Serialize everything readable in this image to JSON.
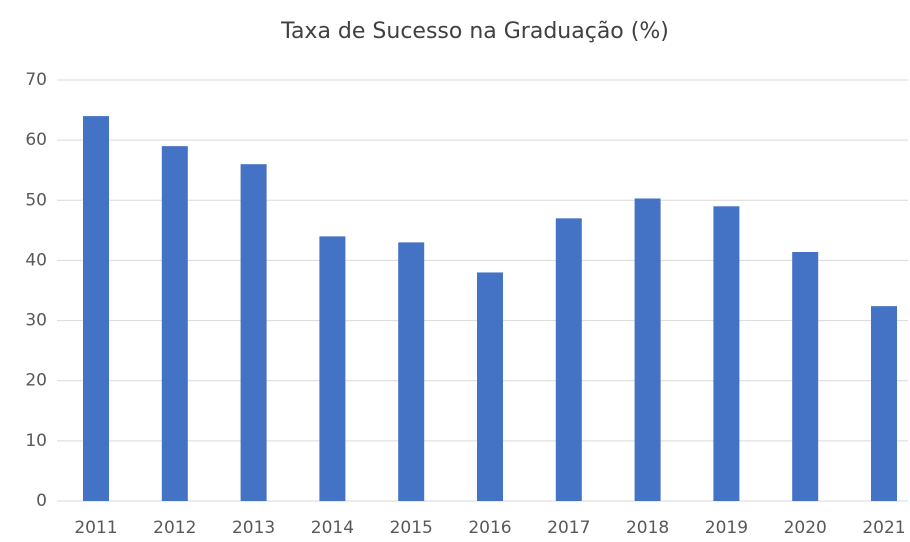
{
  "chart_data": {
    "type": "bar",
    "title": "Taxa de Sucesso na Graduação (%)",
    "categories": [
      "2011",
      "2012",
      "2013",
      "2014",
      "2015",
      "2016",
      "2017",
      "2018",
      "2019",
      "2020",
      "2021"
    ],
    "values": [
      64,
      59,
      56,
      44,
      43,
      38,
      47,
      50.3,
      49,
      41.4,
      32.4
    ],
    "color": "#4472c4",
    "ylim": [
      0,
      70
    ],
    "yticks": [
      0,
      10,
      20,
      30,
      40,
      50,
      60,
      70
    ],
    "grid": true
  }
}
